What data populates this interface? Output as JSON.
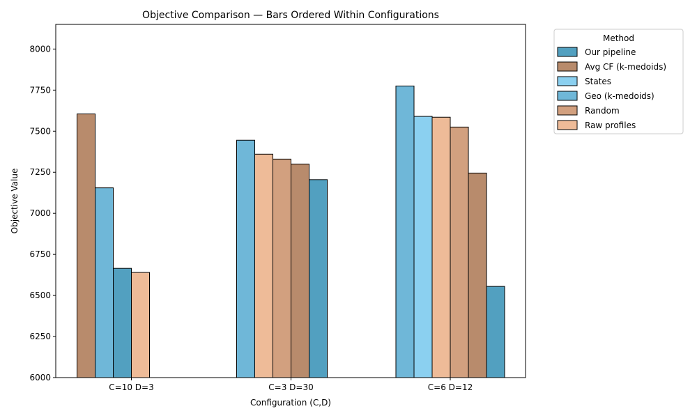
{
  "chart_data": {
    "type": "bar",
    "title": "Objective Comparison — Bars Ordered Within Configurations",
    "xlabel": "Configuration (C,D)",
    "ylabel": "Objective Value",
    "ylim": [
      6000,
      8150
    ],
    "yticks": [
      6000,
      6250,
      6500,
      6750,
      7000,
      7250,
      7500,
      7750,
      8000
    ],
    "grid": false,
    "legend": {
      "title": "Method",
      "placement": "outside-upper-right",
      "entries": [
        {
          "name": "Our pipeline",
          "color": "#52a0c0"
        },
        {
          "name": "Avg CF (k-medoids)",
          "color": "#b88b6c"
        },
        {
          "name": "States",
          "color": "#8bd0f0"
        },
        {
          "name": "Geo (k-medoids)",
          "color": "#6fb7d8"
        },
        {
          "name": "Random",
          "color": "#d2a07f"
        },
        {
          "name": "Raw profiles",
          "color": "#eebb98"
        }
      ]
    },
    "categories": [
      "C=10 D=3",
      "C=3 D=30",
      "C=6 D=12"
    ],
    "groups": [
      {
        "category": "C=10 D=3",
        "bars": [
          {
            "method": "Avg CF (k-medoids)",
            "value": 7605
          },
          {
            "method": "Geo (k-medoids)",
            "value": 7155
          },
          {
            "method": "Our pipeline",
            "value": 6665
          },
          {
            "method": "Raw profiles",
            "value": 6640
          }
        ]
      },
      {
        "category": "C=3 D=30",
        "bars": [
          {
            "method": "Geo (k-medoids)",
            "value": 7445
          },
          {
            "method": "Raw profiles",
            "value": 7360
          },
          {
            "method": "Random",
            "value": 7330
          },
          {
            "method": "Avg CF (k-medoids)",
            "value": 7300
          },
          {
            "method": "Our pipeline",
            "value": 7205
          }
        ]
      },
      {
        "category": "C=6 D=12",
        "bars": [
          {
            "method": "Geo (k-medoids)",
            "value": 7775
          },
          {
            "method": "States",
            "value": 7590
          },
          {
            "method": "Raw profiles",
            "value": 7585
          },
          {
            "method": "Random",
            "value": 7525
          },
          {
            "method": "Avg CF (k-medoids)",
            "value": 7245
          },
          {
            "method": "Our pipeline",
            "value": 6555
          }
        ]
      }
    ]
  }
}
